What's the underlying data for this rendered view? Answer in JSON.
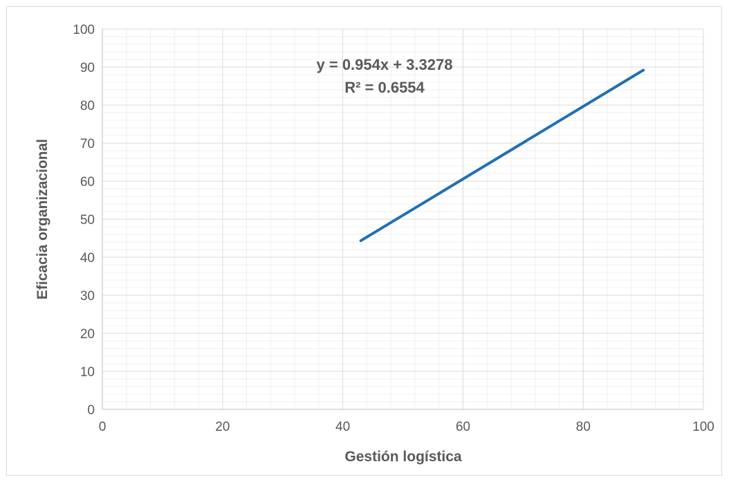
{
  "chart_data": {
    "type": "line",
    "title": "",
    "xlabel": "Gestión logística",
    "ylabel": "Eficacia organizacional",
    "xlim": [
      0,
      100
    ],
    "ylim": [
      0,
      100
    ],
    "x_ticks": [
      0,
      20,
      40,
      60,
      80,
      100
    ],
    "y_ticks": [
      0,
      10,
      20,
      30,
      40,
      50,
      60,
      70,
      80,
      90,
      100
    ],
    "x_ticks_labels": [
      "0",
      "20",
      "40",
      "60",
      "80",
      "100"
    ],
    "y_ticks_labels": [
      "0",
      "10",
      "20",
      "30",
      "40",
      "50",
      "60",
      "70",
      "80",
      "90",
      "100"
    ],
    "grid": true,
    "minor_grid": true,
    "legend": "none",
    "series": [
      {
        "type": "linear-trendline",
        "color": "#1f6fb5",
        "x": [
          43,
          90
        ],
        "y": [
          44.35,
          89.19
        ]
      }
    ],
    "annotations": {
      "equation": "y = 0.954x + 3.3278",
      "r_squared": "R² = 0.6554"
    }
  }
}
